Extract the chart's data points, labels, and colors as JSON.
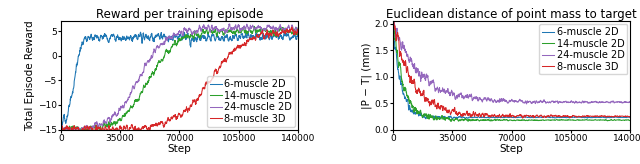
{
  "left_title": "Reward per training episode",
  "right_title": "Euclidean distance of point mass to target",
  "left_xlabel": "Step",
  "left_ylabel": "Total Episode Reward",
  "right_xlabel": "Step",
  "right_ylabel": "|P − T| (mm)",
  "x_max": 140000,
  "left_ylim": [
    -15,
    7
  ],
  "right_ylim": [
    0.0,
    2.05
  ],
  "left_yticks": [
    -15,
    -10,
    -5,
    0,
    5
  ],
  "right_yticks": [
    0.0,
    0.5,
    1.0,
    1.5,
    2.0
  ],
  "xticks": [
    0,
    35000,
    70000,
    105000,
    140000
  ],
  "xticklabels": [
    "0",
    "35000",
    "70000",
    "105000",
    "140000"
  ],
  "colors": {
    "6muscle2D": "#1f77b4",
    "14muscle2D": "#2ca02c",
    "24muscle2D": "#9467bd",
    "8muscle3D": "#d62728"
  },
  "legend_labels": [
    "6-muscle 2D",
    "14-muscle 2D",
    "24-muscle 2D",
    "8-muscle 3D"
  ],
  "title_fontsize": 8.5,
  "label_fontsize": 7.5,
  "tick_fontsize": 6.5,
  "legend_fontsize": 7.0
}
